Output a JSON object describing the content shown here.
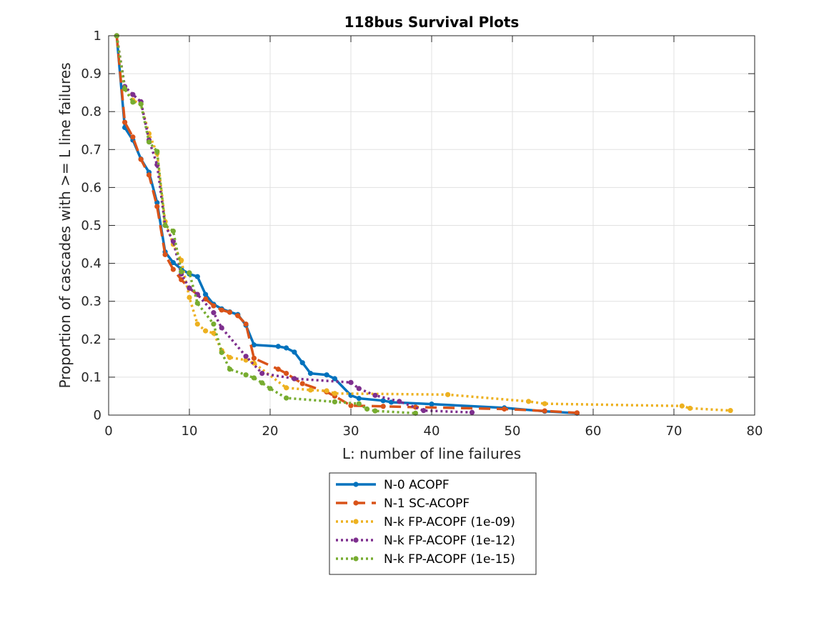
{
  "chart_data": {
    "type": "line",
    "title": "118bus Survival Plots",
    "xlabel": "L: number of line failures",
    "ylabel": "Proportion of cascades with >= L line failures",
    "xlim": [
      0,
      80
    ],
    "ylim": [
      0,
      1
    ],
    "xticks": [
      0,
      10,
      20,
      30,
      40,
      50,
      60,
      70,
      80
    ],
    "yticks": [
      0,
      0.1,
      0.2,
      0.3,
      0.4,
      0.5,
      0.6,
      0.7,
      0.8,
      0.9,
      1
    ],
    "grid": true,
    "legend_placement": "bottom-center-outside",
    "series": [
      {
        "name": "N-0 ACOPF",
        "color": "#0072BD",
        "line_style": "solid",
        "x": [
          1,
          2,
          3,
          4,
          5,
          6,
          7,
          8,
          9,
          10,
          11,
          12,
          13,
          14,
          15,
          16,
          17,
          18,
          21,
          22,
          23,
          24,
          25,
          27,
          28,
          30,
          31,
          34,
          35,
          40,
          49,
          54,
          58
        ],
        "y": [
          1.0,
          0.758,
          0.725,
          0.675,
          0.64,
          0.56,
          0.43,
          0.402,
          0.385,
          0.372,
          0.365,
          0.318,
          0.292,
          0.28,
          0.272,
          0.265,
          0.237,
          0.185,
          0.181,
          0.177,
          0.166,
          0.138,
          0.11,
          0.106,
          0.096,
          0.052,
          0.044,
          0.038,
          0.034,
          0.029,
          0.019,
          0.01,
          0.005
        ]
      },
      {
        "name": "N-1 SC-ACOPF",
        "color": "#D95319",
        "line_style": "dashed",
        "x": [
          1,
          2,
          3,
          4,
          5,
          6,
          7,
          8,
          9,
          10,
          11,
          12,
          13,
          14,
          15,
          16,
          17,
          18,
          21,
          22,
          23,
          24,
          27,
          28,
          30,
          34,
          38,
          49,
          54,
          58
        ],
        "y": [
          1.0,
          0.772,
          0.733,
          0.674,
          0.633,
          0.55,
          0.423,
          0.384,
          0.357,
          0.334,
          0.318,
          0.306,
          0.288,
          0.277,
          0.271,
          0.262,
          0.24,
          0.15,
          0.121,
          0.11,
          0.096,
          0.083,
          0.061,
          0.05,
          0.025,
          0.023,
          0.021,
          0.016,
          0.011,
          0.006
        ]
      },
      {
        "name": "N-k FP-ACOPF (1e-09)",
        "color": "#EDB120",
        "line_style": "dotted",
        "x": [
          1,
          2,
          3,
          4,
          5,
          6,
          7,
          8,
          9,
          10,
          11,
          12,
          13,
          14,
          15,
          17,
          18,
          22,
          25,
          27,
          28,
          42,
          52,
          54,
          71,
          72,
          77
        ],
        "y": [
          1.0,
          0.86,
          0.83,
          0.82,
          0.742,
          0.69,
          0.51,
          0.45,
          0.408,
          0.31,
          0.24,
          0.222,
          0.216,
          0.17,
          0.152,
          0.145,
          0.137,
          0.072,
          0.066,
          0.064,
          0.057,
          0.054,
          0.036,
          0.03,
          0.024,
          0.018,
          0.012
        ]
      },
      {
        "name": "N-k FP-ACOPF (1e-12)",
        "color": "#7E2F8E",
        "line_style": "dotted",
        "x": [
          1,
          2,
          3,
          4,
          5,
          6,
          7,
          8,
          9,
          10,
          11,
          13,
          14,
          17,
          19,
          23,
          30,
          31,
          33,
          36,
          39,
          45
        ],
        "y": [
          1.0,
          0.866,
          0.845,
          0.826,
          0.725,
          0.66,
          0.5,
          0.458,
          0.372,
          0.335,
          0.318,
          0.27,
          0.23,
          0.155,
          0.11,
          0.096,
          0.086,
          0.07,
          0.052,
          0.036,
          0.012,
          0.007
        ]
      },
      {
        "name": "N-k FP-ACOPF (1e-15)",
        "color": "#77AC30",
        "line_style": "dotted",
        "x": [
          1,
          2,
          3,
          4,
          5,
          6,
          7,
          8,
          9,
          10,
          11,
          13,
          14,
          15,
          17,
          18,
          19,
          20,
          22,
          28,
          31,
          32,
          33,
          38
        ],
        "y": [
          1.0,
          0.86,
          0.825,
          0.82,
          0.72,
          0.695,
          0.5,
          0.485,
          0.378,
          0.375,
          0.295,
          0.24,
          0.165,
          0.121,
          0.106,
          0.098,
          0.085,
          0.07,
          0.045,
          0.035,
          0.03,
          0.016,
          0.011,
          0.005
        ]
      }
    ]
  }
}
